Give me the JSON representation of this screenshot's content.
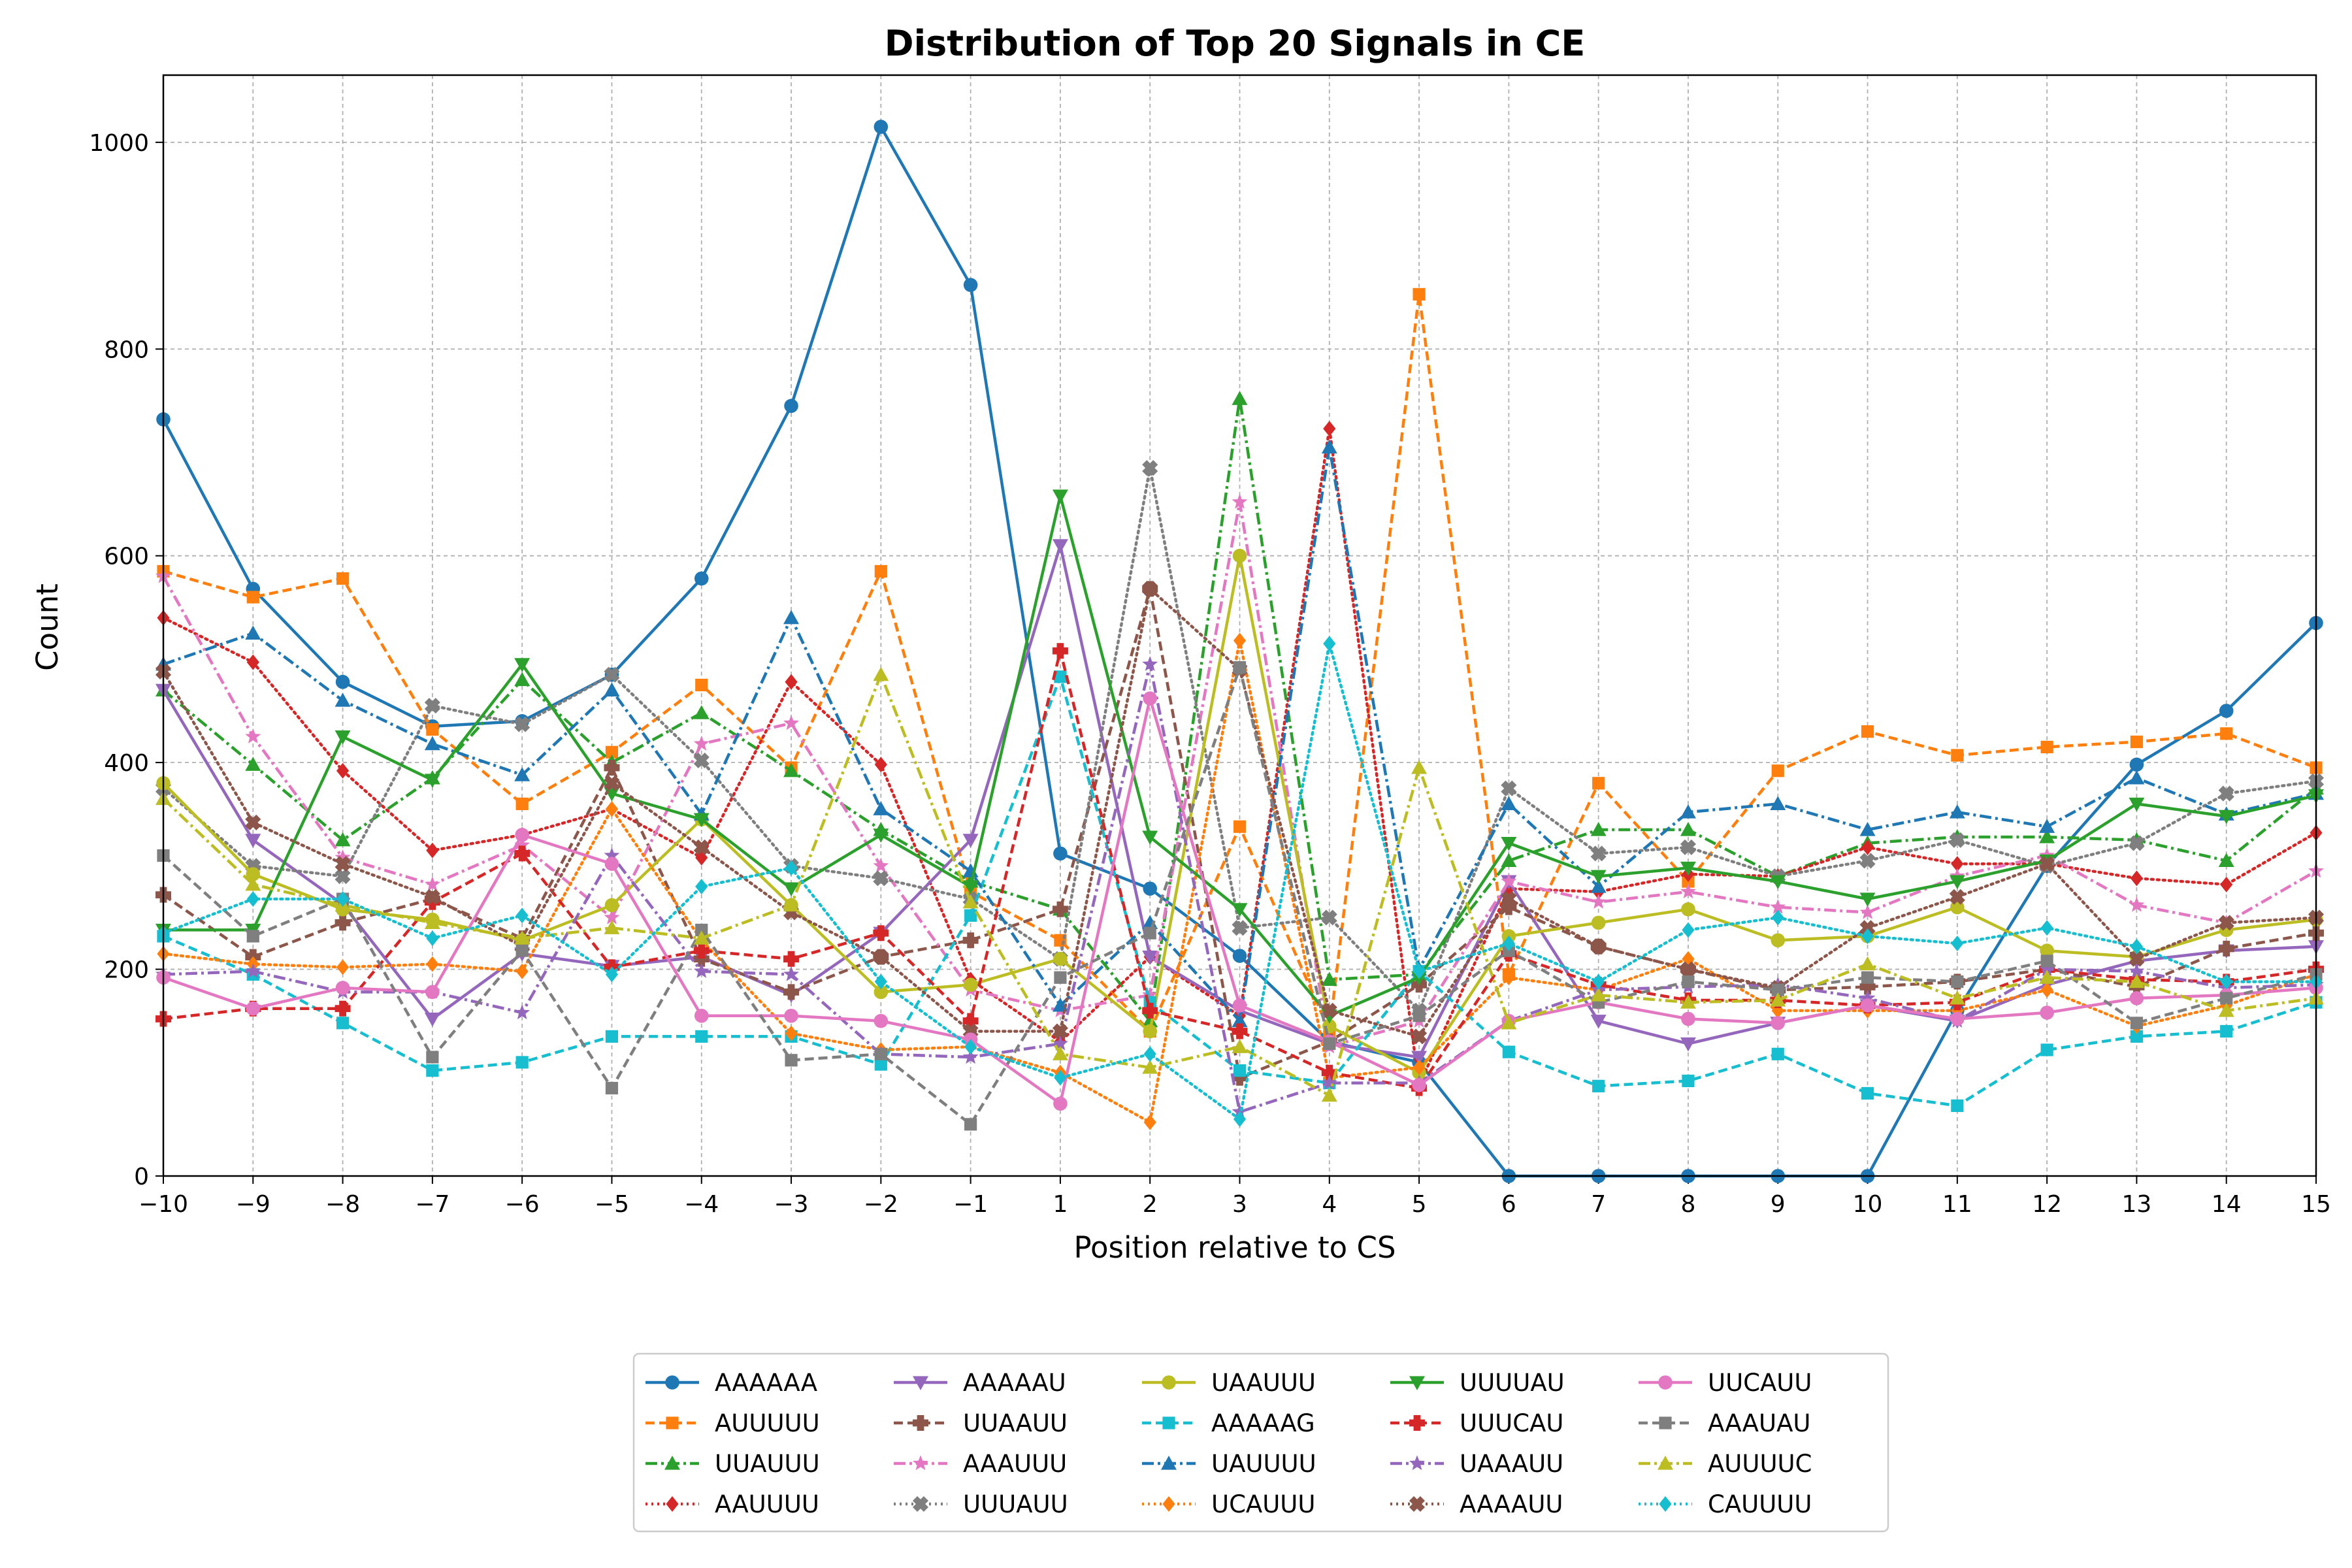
{
  "chart_data": {
    "type": "line",
    "title": "Distribution of Top 20 Signals in CE",
    "xlabel": "Position relative to CS",
    "ylabel": "Count",
    "x": [
      -10,
      -9,
      -8,
      -7,
      -6,
      -5,
      -4,
      -3,
      -2,
      -1,
      1,
      2,
      3,
      4,
      5,
      6,
      7,
      8,
      9,
      10,
      11,
      12,
      13,
      14,
      15
    ],
    "x_tick_labels": [
      "−10",
      "−9",
      "−8",
      "−7",
      "−6",
      "−5",
      "−4",
      "−3",
      "−2",
      "−1",
      "1",
      "2",
      "3",
      "4",
      "5",
      "6",
      "7",
      "8",
      "9",
      "10",
      "11",
      "12",
      "13",
      "14",
      "15"
    ],
    "xlim": [
      -10,
      15
    ],
    "ylim": [
      0,
      1065
    ],
    "y_ticks": [
      0,
      200,
      400,
      600,
      800,
      1000
    ],
    "grid": true,
    "legend_position": "bottom-center",
    "series": [
      {
        "name": "AAAAAA",
        "color": "#1f77b4",
        "dash": "solid",
        "marker": "circle",
        "values": [
          732,
          568,
          478,
          435,
          440,
          485,
          578,
          745,
          1015,
          862,
          312,
          278,
          213,
          130,
          110,
          0,
          0,
          0,
          0,
          0,
          160,
          300,
          398,
          450,
          535
        ]
      },
      {
        "name": "AUUUUU",
        "color": "#ff7f0e",
        "dash": "dashed",
        "marker": "square",
        "values": [
          585,
          560,
          578,
          432,
          360,
          410,
          475,
          395,
          585,
          275,
          228,
          140,
          338,
          140,
          853,
          195,
          380,
          285,
          392,
          430,
          407,
          415,
          420,
          428,
          395
        ]
      },
      {
        "name": "UUAUUU",
        "color": "#2ca02c",
        "dash": "dashdot",
        "marker": "triangle-up",
        "values": [
          470,
          398,
          325,
          385,
          480,
          400,
          448,
          392,
          335,
          285,
          258,
          150,
          752,
          190,
          195,
          305,
          335,
          335,
          290,
          322,
          328,
          328,
          325,
          305,
          375
        ]
      },
      {
        "name": "AAUUUU",
        "color": "#d62728",
        "dash": "dotted",
        "marker": "diamond",
        "values": [
          540,
          497,
          392,
          315,
          330,
          355,
          308,
          478,
          398,
          190,
          130,
          212,
          155,
          723,
          88,
          278,
          275,
          292,
          290,
          318,
          302,
          302,
          288,
          282,
          332
        ]
      },
      {
        "name": "AAAAAU",
        "color": "#9467bd",
        "dash": "solid",
        "marker": "triangle-down",
        "values": [
          470,
          325,
          263,
          152,
          215,
          203,
          212,
          175,
          235,
          325,
          610,
          212,
          160,
          128,
          115,
          285,
          150,
          128,
          148,
          165,
          150,
          185,
          208,
          218,
          222
        ]
      },
      {
        "name": "UUAAUU",
        "color": "#8c564b",
        "dash": "dashed",
        "marker": "plus",
        "values": [
          272,
          212,
          245,
          268,
          230,
          395,
          210,
          178,
          212,
          228,
          258,
          568,
          95,
          130,
          185,
          260,
          222,
          200,
          180,
          183,
          188,
          200,
          183,
          220,
          235
        ]
      },
      {
        "name": "AAAUUU",
        "color": "#e377c2",
        "dash": "dashdot",
        "marker": "star",
        "values": [
          580,
          425,
          308,
          282,
          320,
          250,
          418,
          438,
          300,
          180,
          160,
          175,
          652,
          125,
          150,
          285,
          265,
          275,
          260,
          255,
          290,
          310,
          262,
          245,
          295
        ]
      },
      {
        "name": "UUUAUU",
        "color": "#7f7f7f",
        "dash": "dotted",
        "marker": "x",
        "values": [
          375,
          300,
          290,
          455,
          437,
          485,
          402,
          300,
          288,
          268,
          210,
          685,
          240,
          250,
          160,
          375,
          312,
          318,
          290,
          305,
          325,
          300,
          322,
          370,
          382
        ]
      },
      {
        "name": "UAAUUU",
        "color": "#bcbd22",
        "dash": "solid",
        "marker": "circle",
        "values": [
          380,
          292,
          258,
          248,
          228,
          262,
          345,
          262,
          178,
          185,
          210,
          140,
          600,
          145,
          100,
          232,
          245,
          258,
          228,
          232,
          260,
          218,
          212,
          238,
          248
        ]
      },
      {
        "name": "AAAAAG",
        "color": "#17becf",
        "dash": "dashed",
        "marker": "square",
        "values": [
          232,
          195,
          148,
          102,
          110,
          135,
          135,
          135,
          108,
          252,
          483,
          168,
          102,
          90,
          198,
          120,
          87,
          92,
          118,
          80,
          68,
          122,
          135,
          140,
          168
        ]
      },
      {
        "name": "UAUUUU",
        "color": "#1f77b4",
        "dash": "dashdot",
        "marker": "triangle-up",
        "values": [
          495,
          525,
          460,
          418,
          388,
          470,
          350,
          540,
          355,
          295,
          165,
          245,
          150,
          705,
          200,
          360,
          280,
          352,
          360,
          335,
          352,
          338,
          385,
          350,
          370
        ]
      },
      {
        "name": "UCAUUU",
        "color": "#ff7f0e",
        "dash": "dotted",
        "marker": "diamond",
        "values": [
          215,
          205,
          202,
          205,
          198,
          355,
          228,
          138,
          122,
          125,
          100,
          52,
          518,
          95,
          105,
          192,
          180,
          210,
          160,
          160,
          160,
          180,
          145,
          165,
          195
        ]
      },
      {
        "name": "UUUUAU",
        "color": "#2ca02c",
        "dash": "solid",
        "marker": "triangle-down",
        "values": [
          238,
          238,
          425,
          383,
          495,
          370,
          345,
          278,
          330,
          280,
          658,
          328,
          258,
          155,
          192,
          322,
          290,
          298,
          285,
          268,
          285,
          305,
          360,
          348,
          368
        ]
      },
      {
        "name": "UUUCAU",
        "color": "#d62728",
        "dash": "dashed",
        "marker": "plus",
        "values": [
          152,
          162,
          162,
          265,
          312,
          202,
          218,
          210,
          235,
          150,
          508,
          160,
          140,
          100,
          85,
          215,
          185,
          170,
          170,
          165,
          168,
          200,
          190,
          188,
          200
        ]
      },
      {
        "name": "UAAAUU",
        "color": "#9467bd",
        "dash": "dashdot",
        "marker": "star",
        "values": [
          195,
          198,
          178,
          178,
          158,
          310,
          198,
          195,
          118,
          115,
          128,
          495,
          62,
          90,
          90,
          150,
          180,
          183,
          185,
          172,
          150,
          200,
          198,
          182,
          185
        ]
      },
      {
        "name": "AAAAUU",
        "color": "#8c564b",
        "dash": "dotted",
        "marker": "x",
        "values": [
          488,
          342,
          302,
          270,
          222,
          380,
          318,
          255,
          212,
          140,
          140,
          568,
          490,
          160,
          135,
          268,
          222,
          200,
          182,
          240,
          270,
          302,
          210,
          245,
          250
        ]
      },
      {
        "name": "UUCAUU",
        "color": "#e377c2",
        "dash": "solid",
        "marker": "circle",
        "values": [
          192,
          162,
          182,
          178,
          330,
          302,
          155,
          155,
          150,
          132,
          70,
          462,
          165,
          130,
          88,
          150,
          168,
          152,
          148,
          165,
          152,
          158,
          172,
          175,
          182
        ]
      },
      {
        "name": "AAAUAU",
        "color": "#7f7f7f",
        "dash": "dashed",
        "marker": "square",
        "values": [
          310,
          232,
          268,
          115,
          218,
          85,
          238,
          112,
          118,
          50,
          192,
          235,
          492,
          128,
          155,
          218,
          168,
          188,
          180,
          192,
          188,
          208,
          148,
          172,
          195
        ]
      },
      {
        "name": "AUUUUC",
        "color": "#bcbd22",
        "dash": "dashdot",
        "marker": "triangle-up",
        "values": [
          365,
          282,
          262,
          245,
          230,
          240,
          230,
          262,
          485,
          265,
          118,
          105,
          125,
          78,
          395,
          148,
          175,
          168,
          170,
          205,
          172,
          192,
          188,
          160,
          172
        ]
      },
      {
        "name": "CAUUUU",
        "color": "#17becf",
        "dash": "dotted",
        "marker": "diamond",
        "values": [
          235,
          268,
          268,
          230,
          252,
          195,
          280,
          298,
          188,
          125,
          95,
          118,
          55,
          515,
          198,
          225,
          188,
          238,
          250,
          232,
          225,
          240,
          222,
          188,
          188
        ]
      }
    ]
  }
}
